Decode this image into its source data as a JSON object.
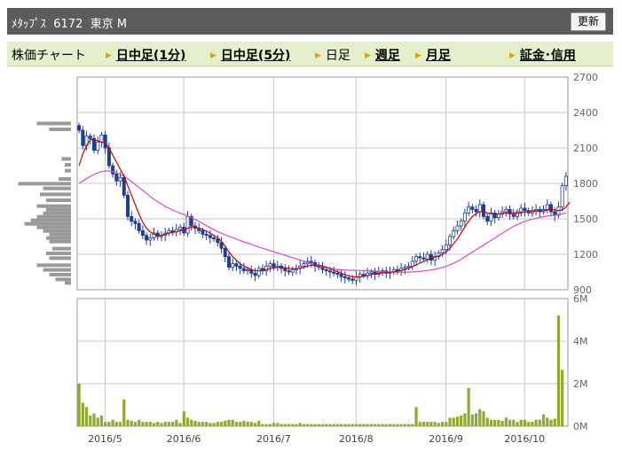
{
  "header": {
    "title": "ﾒﾀｯﾌﾟｽ  6172  東京 M",
    "refresh_label": "更新"
  },
  "nav": {
    "chart_label": "株価チャート",
    "items": [
      {
        "label": "日中足(1分)",
        "link": true
      },
      {
        "label": "日中足(5分)",
        "link": true
      },
      {
        "label": "日足",
        "link": false
      },
      {
        "label": "週足",
        "link": true
      },
      {
        "label": "月足",
        "link": true
      },
      {
        "label": "証金･信用",
        "link": true
      }
    ]
  },
  "colors": {
    "up_candle": "#ffffff",
    "down_candle": "#1c3f94",
    "ma_short": "#cc0000",
    "ma_long": "#d24bd8",
    "volume_bar": "#8faa2e",
    "price_volume_profile": "#999999",
    "grid": "#c8c8c8"
  },
  "chart_data": [
    {
      "type": "candlestick",
      "title": "",
      "y_ticks": [
        "2700",
        "2400",
        "2100",
        "1800",
        "1500",
        "1200",
        "900"
      ],
      "ylim": [
        900,
        2700
      ],
      "x_ticks": [
        "2016/5",
        "2016/6",
        "2016/7",
        "2016/8",
        "2016/9",
        "2016/10"
      ],
      "x_tick_index": [
        6,
        27,
        51,
        73,
        97,
        118
      ],
      "close": [
        2250,
        2120,
        2200,
        2180,
        2080,
        2150,
        2210,
        2100,
        1950,
        1880,
        1820,
        1850,
        1700,
        1520,
        1480,
        1460,
        1400,
        1360,
        1320,
        1340,
        1380,
        1350,
        1360,
        1380,
        1400,
        1390,
        1410,
        1430,
        1380,
        1520,
        1440,
        1420,
        1400,
        1370,
        1360,
        1340,
        1330,
        1300,
        1250,
        1180,
        1090,
        1120,
        1100,
        1080,
        1060,
        1070,
        1040,
        1020,
        1080,
        1060,
        1100,
        1120,
        1090,
        1100,
        1080,
        1060,
        1050,
        1070,
        1080,
        1100,
        1120,
        1140,
        1130,
        1100,
        1090,
        1070,
        1060,
        1050,
        1040,
        1030,
        1010,
        1000,
        990,
        980,
        1010,
        1030,
        1020,
        1040,
        1050,
        1030,
        1050,
        1060,
        1040,
        1050,
        1070,
        1060,
        1080,
        1090,
        1100,
        1140,
        1180,
        1170,
        1160,
        1200,
        1150,
        1180,
        1210,
        1240,
        1280,
        1350,
        1400,
        1440,
        1480,
        1550,
        1600,
        1580,
        1560,
        1620,
        1520,
        1480,
        1550,
        1510,
        1540,
        1560,
        1580,
        1540,
        1520,
        1560,
        1590,
        1570,
        1550,
        1570,
        1580,
        1560,
        1580,
        1620,
        1560,
        1530,
        1600,
        1780,
        1860
      ],
      "ma_short": [
        1950,
        2050,
        2120,
        2170,
        2170,
        2160,
        2150,
        2140,
        2100,
        2040,
        1980,
        1920,
        1860,
        1780,
        1700,
        1620,
        1540,
        1470,
        1420,
        1390,
        1370,
        1360,
        1360,
        1370,
        1380,
        1385,
        1390,
        1400,
        1405,
        1420,
        1430,
        1430,
        1420,
        1410,
        1395,
        1380,
        1360,
        1340,
        1310,
        1270,
        1220,
        1180,
        1150,
        1120,
        1100,
        1085,
        1070,
        1060,
        1060,
        1062,
        1070,
        1080,
        1085,
        1090,
        1090,
        1085,
        1080,
        1078,
        1078,
        1082,
        1090,
        1100,
        1108,
        1110,
        1108,
        1100,
        1090,
        1078,
        1065,
        1052,
        1040,
        1028,
        1018,
        1010,
        1008,
        1010,
        1014,
        1020,
        1028,
        1032,
        1038,
        1044,
        1046,
        1048,
        1052,
        1056,
        1062,
        1070,
        1080,
        1095,
        1110,
        1125,
        1140,
        1155,
        1165,
        1175,
        1185,
        1200,
        1220,
        1250,
        1290,
        1330,
        1380,
        1430,
        1480,
        1520,
        1545,
        1560,
        1560,
        1550,
        1545,
        1540,
        1540,
        1545,
        1550,
        1552,
        1550,
        1548,
        1552,
        1558,
        1560,
        1562,
        1565,
        1568,
        1570,
        1575,
        1580,
        1575,
        1570,
        1575,
        1600,
        1640
      ],
      "ma_long": [
        1800,
        1820,
        1840,
        1860,
        1875,
        1890,
        1900,
        1905,
        1905,
        1900,
        1890,
        1875,
        1860,
        1840,
        1815,
        1790,
        1765,
        1740,
        1715,
        1690,
        1665,
        1645,
        1625,
        1605,
        1590,
        1575,
        1560,
        1548,
        1536,
        1525,
        1510,
        1495,
        1478,
        1460,
        1442,
        1425,
        1408,
        1392,
        1378,
        1365,
        1352,
        1340,
        1328,
        1316,
        1305,
        1294,
        1283,
        1272,
        1261,
        1251,
        1241,
        1231,
        1221,
        1211,
        1201,
        1191,
        1181,
        1171,
        1161,
        1151,
        1141,
        1131,
        1121,
        1111,
        1102,
        1094,
        1087,
        1081,
        1076,
        1072,
        1069,
        1067,
        1066,
        1065,
        1064,
        1063,
        1062,
        1061,
        1060,
        1058,
        1056,
        1054,
        1052,
        1050,
        1049,
        1048,
        1048,
        1048,
        1049,
        1050,
        1052,
        1055,
        1058,
        1062,
        1067,
        1073,
        1080,
        1088,
        1098,
        1110,
        1124,
        1140,
        1158,
        1178,
        1198,
        1218,
        1238,
        1258,
        1278,
        1298,
        1318,
        1338,
        1358,
        1378,
        1398,
        1418,
        1436,
        1452,
        1466,
        1478,
        1488,
        1497,
        1505,
        1512,
        1518,
        1523,
        1527,
        1531,
        1536,
        1542,
        1548
      ]
    },
    {
      "type": "bar",
      "title": "",
      "y_ticks": [
        "6M",
        "4M",
        "2M",
        "0M"
      ],
      "ylim": [
        0,
        6
      ],
      "unit": "M",
      "volume": [
        2.0,
        1.1,
        0.9,
        0.5,
        0.6,
        0.4,
        0.5,
        0.2,
        0.2,
        0.3,
        0.2,
        0.2,
        1.25,
        0.3,
        0.25,
        0.2,
        0.3,
        0.2,
        0.2,
        0.2,
        0.15,
        0.2,
        0.15,
        0.2,
        0.2,
        0.2,
        0.3,
        0.15,
        0.7,
        0.4,
        0.3,
        0.25,
        0.2,
        0.2,
        0.2,
        0.15,
        0.15,
        0.2,
        0.2,
        0.25,
        0.3,
        0.3,
        0.2,
        0.2,
        0.25,
        0.2,
        0.2,
        0.15,
        0.25,
        0.1,
        0.1,
        0.1,
        0.15,
        0.15,
        0.1,
        0.1,
        0.1,
        0.1,
        0.1,
        0.15,
        0.1,
        0.1,
        0.1,
        0.1,
        0.1,
        0.1,
        0.1,
        0.1,
        0.1,
        0.1,
        0.1,
        0.1,
        0.1,
        0.1,
        0.1,
        0.1,
        0.1,
        0.1,
        0.1,
        0.1,
        0.1,
        0.1,
        0.1,
        0.1,
        0.1,
        0.1,
        0.1,
        0.1,
        0.1,
        0.1,
        0.9,
        0.2,
        0.2,
        0.2,
        0.2,
        0.2,
        0.15,
        0.2,
        0.2,
        0.4,
        0.4,
        0.45,
        0.5,
        0.6,
        1.8,
        0.55,
        0.6,
        0.8,
        0.7,
        0.4,
        0.3,
        0.3,
        0.3,
        0.25,
        0.4,
        0.3,
        0.3,
        0.2,
        0.3,
        0.3,
        0.2,
        0.2,
        0.3,
        0.3,
        0.55,
        0.4,
        0.3,
        0.35,
        5.2,
        2.65
      ],
      "price_volume_profile": {
        "note_levels": "price bands from 2700 down to 900",
        "bands": [
          [
            2300,
            0.55
          ],
          [
            2250,
            0.35
          ],
          [
            2000,
            0.15
          ],
          [
            1950,
            0.1
          ],
          [
            1900,
            0.1
          ],
          [
            1830,
            0.2
          ],
          [
            1790,
            0.85
          ],
          [
            1750,
            0.45
          ],
          [
            1700,
            0.5
          ],
          [
            1650,
            0.4
          ],
          [
            1600,
            0.55
          ],
          [
            1570,
            0.4
          ],
          [
            1540,
            0.45
          ],
          [
            1510,
            0.55
          ],
          [
            1480,
            0.65
          ],
          [
            1450,
            0.75
          ],
          [
            1420,
            0.55
          ],
          [
            1390,
            0.45
          ],
          [
            1360,
            0.35
          ],
          [
            1330,
            0.4
          ],
          [
            1300,
            0.35
          ],
          [
            1240,
            0.3
          ],
          [
            1200,
            0.4
          ],
          [
            1160,
            0.35
          ],
          [
            1100,
            0.55
          ],
          [
            1060,
            0.45
          ],
          [
            1020,
            0.35
          ],
          [
            980,
            0.25
          ],
          [
            950,
            0.1
          ]
        ]
      }
    }
  ]
}
